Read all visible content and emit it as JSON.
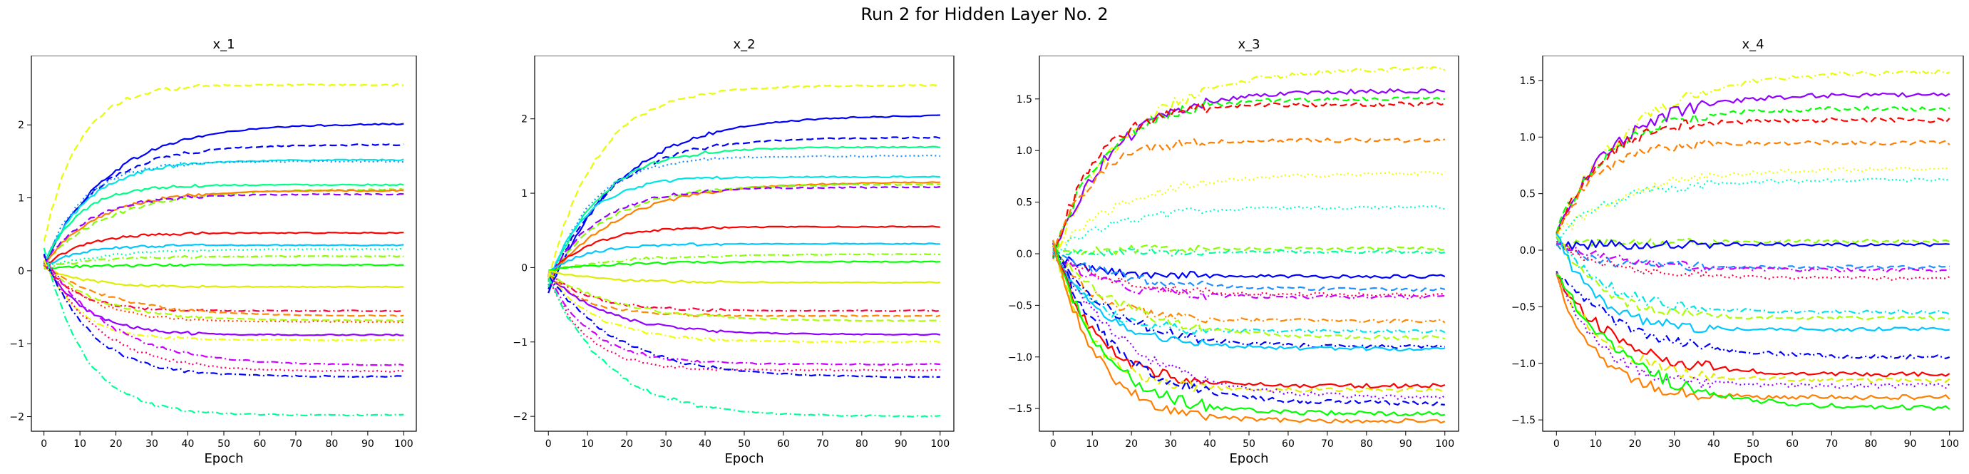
{
  "figure": {
    "title": "Run 2 for Hidden Layer No. 2"
  },
  "chart_data": [
    {
      "type": "line",
      "title": "x_1",
      "xlabel": "Epoch",
      "ylabel": "",
      "xlim": [
        0,
        100
      ],
      "ylim": [
        -2.2,
        2.95
      ],
      "xticks": [
        0,
        10,
        20,
        30,
        40,
        50,
        60,
        70,
        80,
        90,
        100
      ],
      "yticks": [
        -2,
        -1,
        0,
        1,
        2
      ],
      "grid": false,
      "series": [
        {
          "color": "#0000ff",
          "dash": "solid",
          "final": 2.02,
          "peak": 45
        },
        {
          "color": "#0000ff",
          "dash": "dashed",
          "final": 1.73,
          "peak": 45
        },
        {
          "color": "#00e5e5",
          "dash": "solid",
          "final": 1.52,
          "peak": 45
        },
        {
          "color": "#1e90ff",
          "dash": "dotted",
          "final": 1.5,
          "peak": 45
        },
        {
          "color": "#00ff88",
          "dash": "solid",
          "final": 1.18,
          "peak": 45
        },
        {
          "color": "#7fff00",
          "dash": "dashed",
          "final": 1.12,
          "peak": 45
        },
        {
          "color": "#ff7f00",
          "dash": "solid",
          "final": 1.1,
          "peak": 45
        },
        {
          "color": "#9400ff",
          "dash": "dashed",
          "final": 1.05,
          "peak": 45
        },
        {
          "color": "#ff0000",
          "dash": "solid",
          "final": 0.52,
          "peak": 45
        },
        {
          "color": "#00c8ff",
          "dash": "solid",
          "final": 0.35,
          "peak": 45
        },
        {
          "color": "#00ffaa",
          "dash": "dotted",
          "final": 0.3,
          "peak": 45
        },
        {
          "color": "#88ff00",
          "dash": "dashdot",
          "final": 0.2,
          "peak": 45
        },
        {
          "color": "#00ff00",
          "dash": "solid",
          "final": 0.08,
          "peak": 45
        },
        {
          "color": "#ddee00",
          "dash": "solid",
          "final": -0.22,
          "peak": 45
        },
        {
          "color": "#ff0044",
          "dash": "dashdot",
          "final": -0.55,
          "peak": 45
        },
        {
          "color": "#ff8800",
          "dash": "dashed",
          "final": -0.62,
          "peak": 45
        },
        {
          "color": "#aaff00",
          "dash": "dashed",
          "final": -0.68,
          "peak": 45
        },
        {
          "color": "#ff4400",
          "dash": "dotted",
          "final": -0.7,
          "peak": 45
        },
        {
          "color": "#9400ff",
          "dash": "solid",
          "final": -0.88,
          "peak": 45
        },
        {
          "color": "#eeff00",
          "dash": "dashdot",
          "final": -0.95,
          "peak": 45
        },
        {
          "color": "#cc00ff",
          "dash": "dashdot",
          "final": -1.3,
          "peak": 45
        },
        {
          "color": "#ff0066",
          "dash": "dotted",
          "final": -1.38,
          "peak": 45
        },
        {
          "color": "#0000ff",
          "dash": "dashdot",
          "final": -1.45,
          "peak": 45
        },
        {
          "color": "#00ff99",
          "dash": "dashdot",
          "final": -1.98,
          "peak": 45
        },
        {
          "color": "#e5ff00",
          "dash": "dashed",
          "final": 2.55,
          "peak": 45
        }
      ]
    },
    {
      "type": "line",
      "title": "x_2",
      "xlabel": "Epoch",
      "ylabel": "",
      "xlim": [
        0,
        100
      ],
      "ylim": [
        -2.2,
        2.85
      ],
      "xticks": [
        0,
        10,
        20,
        30,
        40,
        50,
        60,
        70,
        80,
        90,
        100
      ],
      "yticks": [
        -2,
        -1,
        0,
        1,
        2
      ],
      "grid": false,
      "series": [
        {
          "color": "#0000ff",
          "dash": "solid",
          "final": 2.05,
          "peak": 45
        },
        {
          "color": "#0000ff",
          "dash": "dashed",
          "final": 1.75,
          "peak": 45
        },
        {
          "color": "#00ff88",
          "dash": "solid",
          "final": 1.62,
          "peak": 45
        },
        {
          "color": "#1e90ff",
          "dash": "dotted",
          "final": 1.5,
          "peak": 45
        },
        {
          "color": "#00e5e5",
          "dash": "solid",
          "final": 1.22,
          "peak": 45
        },
        {
          "color": "#ff7f00",
          "dash": "solid",
          "final": 1.15,
          "peak": 45
        },
        {
          "color": "#7fff00",
          "dash": "dashed",
          "final": 1.12,
          "peak": 45
        },
        {
          "color": "#9400ff",
          "dash": "dashed",
          "final": 1.08,
          "peak": 45
        },
        {
          "color": "#ff0000",
          "dash": "solid",
          "final": 0.55,
          "peak": 45
        },
        {
          "color": "#00c8ff",
          "dash": "solid",
          "final": 0.32,
          "peak": 45
        },
        {
          "color": "#88ff00",
          "dash": "dashdot",
          "final": 0.18,
          "peak": 45
        },
        {
          "color": "#00ff00",
          "dash": "solid",
          "final": 0.08,
          "peak": 45
        },
        {
          "color": "#ddee00",
          "dash": "solid",
          "final": -0.2,
          "peak": 45
        },
        {
          "color": "#ff0044",
          "dash": "dashdot",
          "final": -0.58,
          "peak": 45
        },
        {
          "color": "#ff8800",
          "dash": "dashed",
          "final": -0.65,
          "peak": 45
        },
        {
          "color": "#aaff00",
          "dash": "dashed",
          "final": -0.72,
          "peak": 45
        },
        {
          "color": "#9400ff",
          "dash": "solid",
          "final": -0.9,
          "peak": 45
        },
        {
          "color": "#eeff00",
          "dash": "dashdot",
          "final": -1.0,
          "peak": 45
        },
        {
          "color": "#cc00ff",
          "dash": "dashdot",
          "final": -1.3,
          "peak": 45
        },
        {
          "color": "#ff0066",
          "dash": "dotted",
          "final": -1.38,
          "peak": 45
        },
        {
          "color": "#0000ff",
          "dash": "dashdot",
          "final": -1.48,
          "peak": 45
        },
        {
          "color": "#00ff99",
          "dash": "dashdot",
          "final": -2.0,
          "peak": 45
        },
        {
          "color": "#e5ff00",
          "dash": "dashed",
          "final": 2.45,
          "peak": 45
        }
      ]
    },
    {
      "type": "line",
      "title": "x_3",
      "xlabel": "Epoch",
      "ylabel": "",
      "xlim": [
        0,
        100
      ],
      "ylim": [
        -1.72,
        1.92
      ],
      "xticks": [
        0,
        10,
        20,
        30,
        40,
        50,
        60,
        70,
        80,
        90,
        100
      ],
      "yticks": [
        -1.5,
        -1.0,
        -0.5,
        0.0,
        0.5,
        1.0,
        1.5
      ],
      "grid": false,
      "series": [
        {
          "color": "#e5ff00",
          "dash": "dashdot",
          "final": 1.8,
          "peak": 40
        },
        {
          "color": "#9400ff",
          "dash": "solid",
          "final": 1.58,
          "peak": 40
        },
        {
          "color": "#00ff00",
          "dash": "dashed",
          "final": 1.5,
          "peak": 40
        },
        {
          "color": "#ff0000",
          "dash": "dashed",
          "final": 1.45,
          "peak": 40
        },
        {
          "color": "#ff7f00",
          "dash": "dashed",
          "final": 1.1,
          "peak": 40
        },
        {
          "color": "#eeff00",
          "dash": "dotted",
          "final": 0.78,
          "peak": 40
        },
        {
          "color": "#00ffcc",
          "dash": "dotted",
          "final": 0.45,
          "peak": 40
        },
        {
          "color": "#88ff00",
          "dash": "dashed",
          "final": 0.05,
          "peak": 40
        },
        {
          "color": "#00ff99",
          "dash": "dashdot",
          "final": 0.02,
          "peak": 40
        },
        {
          "color": "#0000ff",
          "dash": "solid",
          "final": -0.22,
          "peak": 40
        },
        {
          "color": "#1e90ff",
          "dash": "dashed",
          "final": -0.35,
          "peak": 40
        },
        {
          "color": "#ff0044",
          "dash": "dotted",
          "final": -0.4,
          "peak": 40
        },
        {
          "color": "#cc00ff",
          "dash": "dashdot",
          "final": -0.42,
          "peak": 40
        },
        {
          "color": "#ff8800",
          "dash": "dashdot",
          "final": -0.65,
          "peak": 40
        },
        {
          "color": "#00e5e5",
          "dash": "dashdot",
          "final": -0.75,
          "peak": 40
        },
        {
          "color": "#aaff00",
          "dash": "dashed",
          "final": -0.82,
          "peak": 40
        },
        {
          "color": "#0000ff",
          "dash": "dashdot",
          "final": -0.9,
          "peak": 40
        },
        {
          "color": "#00c8ff",
          "dash": "solid",
          "final": -0.92,
          "peak": 40
        },
        {
          "color": "#ff0000",
          "dash": "solid",
          "final": -1.28,
          "peak": 40
        },
        {
          "color": "#ddee00",
          "dash": "dashed",
          "final": -1.32,
          "peak": 40
        },
        {
          "color": "#9400ff",
          "dash": "dotted",
          "final": -1.4,
          "peak": 40
        },
        {
          "color": "#0000ff",
          "dash": "dashed",
          "final": -1.45,
          "peak": 40
        },
        {
          "color": "#00ff00",
          "dash": "solid",
          "final": -1.55,
          "peak": 40
        },
        {
          "color": "#ff7f00",
          "dash": "solid",
          "final": -1.62,
          "peak": 40
        }
      ]
    },
    {
      "type": "line",
      "title": "x_4",
      "xlabel": "Epoch",
      "ylabel": "",
      "xlim": [
        0,
        100
      ],
      "ylim": [
        -1.6,
        1.72
      ],
      "xticks": [
        0,
        10,
        20,
        30,
        40,
        50,
        60,
        70,
        80,
        90,
        100
      ],
      "yticks": [
        -1.5,
        -1.0,
        -0.5,
        0.0,
        0.5,
        1.0,
        1.5
      ],
      "grid": false,
      "series": [
        {
          "color": "#e5ff00",
          "dash": "dashdot",
          "final": 1.58,
          "peak": 40
        },
        {
          "color": "#9400ff",
          "dash": "solid",
          "final": 1.38,
          "peak": 40
        },
        {
          "color": "#00ff00",
          "dash": "dashed",
          "final": 1.25,
          "peak": 40
        },
        {
          "color": "#ff0000",
          "dash": "dashed",
          "final": 1.15,
          "peak": 40
        },
        {
          "color": "#ff7f00",
          "dash": "dashed",
          "final": 0.95,
          "peak": 40
        },
        {
          "color": "#eeff00",
          "dash": "dotted",
          "final": 0.72,
          "peak": 40
        },
        {
          "color": "#00ffcc",
          "dash": "dotted",
          "final": 0.62,
          "peak": 40
        },
        {
          "color": "#88ff00",
          "dash": "dashed",
          "final": 0.08,
          "peak": 40
        },
        {
          "color": "#0000ff",
          "dash": "solid",
          "final": 0.05,
          "peak": 40
        },
        {
          "color": "#1e90ff",
          "dash": "dashed",
          "final": -0.15,
          "peak": 40
        },
        {
          "color": "#cc00ff",
          "dash": "dashdot",
          "final": -0.18,
          "peak": 40
        },
        {
          "color": "#ff0044",
          "dash": "dotted",
          "final": -0.25,
          "peak": 40
        },
        {
          "color": "#00e5e5",
          "dash": "dashdot",
          "final": -0.55,
          "peak": 40
        },
        {
          "color": "#aaff00",
          "dash": "dashed",
          "final": -0.6,
          "peak": 40
        },
        {
          "color": "#00c8ff",
          "dash": "solid",
          "final": -0.7,
          "peak": 40
        },
        {
          "color": "#0000ff",
          "dash": "dashdot",
          "final": -0.95,
          "peak": 40
        },
        {
          "color": "#ff0000",
          "dash": "solid",
          "final": -1.1,
          "peak": 40
        },
        {
          "color": "#ddee00",
          "dash": "dashed",
          "final": -1.15,
          "peak": 40
        },
        {
          "color": "#9400ff",
          "dash": "dotted",
          "final": -1.2,
          "peak": 40
        },
        {
          "color": "#ff7f00",
          "dash": "solid",
          "final": -1.3,
          "peak": 40
        },
        {
          "color": "#00ff00",
          "dash": "solid",
          "final": -1.4,
          "peak": 40
        }
      ]
    }
  ]
}
